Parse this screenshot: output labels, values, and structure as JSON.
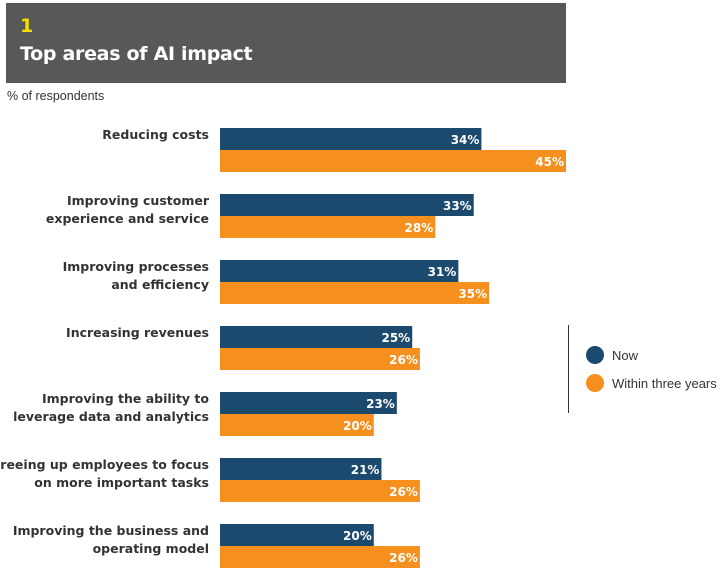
{
  "header": {
    "number": "1",
    "title": "Top areas of AI impact"
  },
  "subtitle": "% of respondents",
  "colors": {
    "now": "#1b4a6e",
    "future": "#f5901e"
  },
  "chart_data": {
    "type": "bar",
    "orientation": "horizontal",
    "title": "Top areas of AI impact",
    "ylabel": "% of respondents",
    "xlim": [
      0,
      45
    ],
    "legend_position": "right",
    "categories": [
      [
        "Reducing costs"
      ],
      [
        "Improving customer",
        "experience and service"
      ],
      [
        "Improving processes",
        "and efficiency"
      ],
      [
        "Increasing revenues"
      ],
      [
        "Improving the ability to",
        "leverage data and analytics"
      ],
      [
        "Freeing up employees to focus",
        "on more important tasks"
      ],
      [
        "Improving the business and",
        "operating model"
      ]
    ],
    "series": [
      {
        "name": "Now",
        "values": [
          34,
          33,
          31,
          25,
          23,
          21,
          20
        ]
      },
      {
        "name": "Within three years",
        "values": [
          45,
          28,
          35,
          26,
          20,
          26,
          26
        ]
      }
    ]
  }
}
